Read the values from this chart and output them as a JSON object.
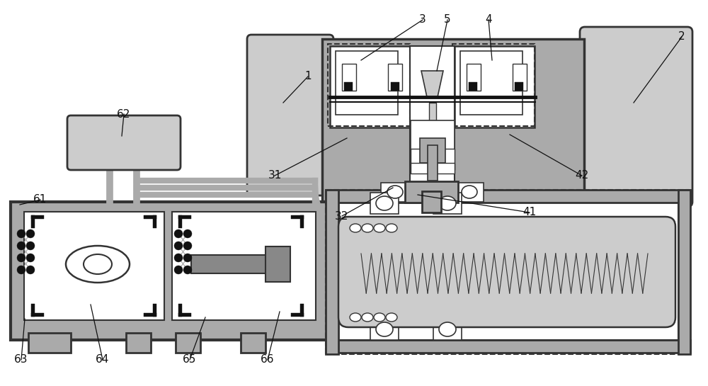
{
  "bg": "#ffffff",
  "gray": "#aaaaaa",
  "lgray": "#cccccc",
  "dgray": "#888888",
  "bk": "#111111",
  "wh": "#ffffff",
  "bc": "#333333",
  "figsize": [
    10.0,
    5.45
  ],
  "dpi": 100
}
